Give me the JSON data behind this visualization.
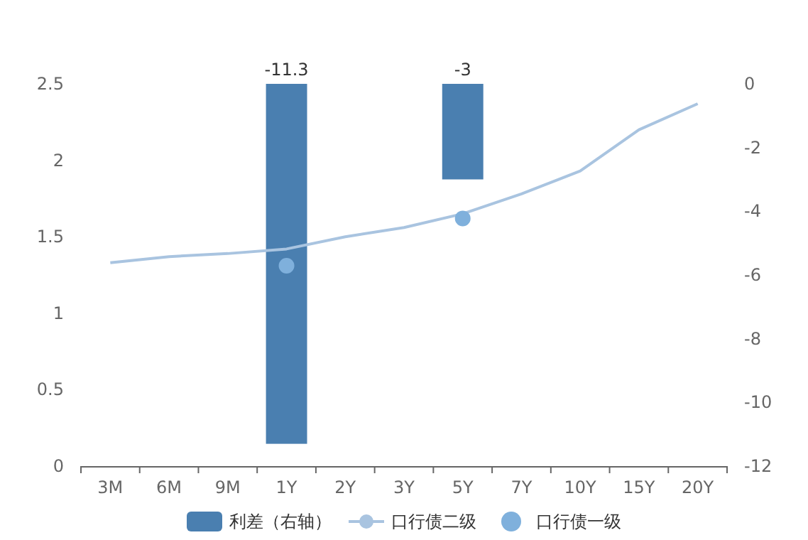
{
  "chart_data": {
    "type": "line",
    "categories": [
      "3M",
      "6M",
      "9M",
      "1Y",
      "2Y",
      "3Y",
      "5Y",
      "7Y",
      "10Y",
      "15Y",
      "20Y"
    ],
    "ylim": [
      0,
      2.5
    ],
    "yticks": [
      0,
      0.5,
      1,
      1.5,
      2,
      2.5
    ],
    "y2lim": [
      -12,
      0
    ],
    "y2ticks": [
      -12,
      -10,
      -8,
      -6,
      -4,
      -2,
      0
    ],
    "legend": "bottom",
    "grid": false,
    "series": [
      {
        "name": "利差（右轴）",
        "type": "bar",
        "axis": "y2",
        "color": "#4a7fb0",
        "values": [
          null,
          null,
          null,
          -11.3,
          null,
          null,
          -3,
          null,
          null,
          null,
          null
        ],
        "value_labels": [
          null,
          null,
          null,
          "-11.3",
          null,
          null,
          "-3",
          null,
          null,
          null,
          null
        ]
      },
      {
        "name": "口行债二级",
        "marker": "none",
        "color": "#a9c4e0",
        "values": [
          1.33,
          1.37,
          1.39,
          1.42,
          1.5,
          1.56,
          1.65,
          1.78,
          1.93,
          2.2,
          2.37
        ]
      },
      {
        "name": "口行债一级",
        "type": "scatter",
        "color": "#7fb0dc",
        "values": [
          null,
          null,
          null,
          1.31,
          null,
          null,
          1.62,
          null,
          null,
          null,
          null
        ]
      }
    ]
  }
}
